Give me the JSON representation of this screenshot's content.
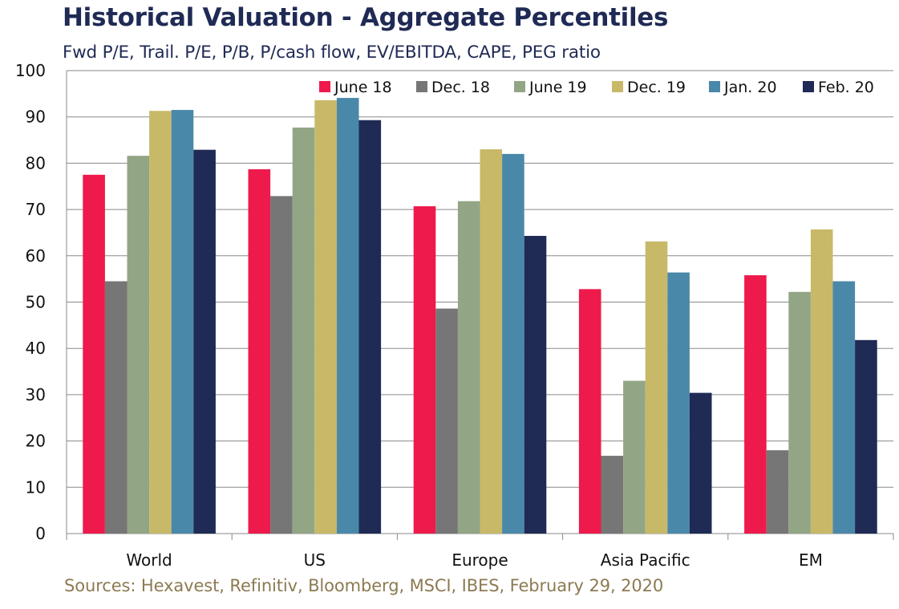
{
  "title": "Historical Valuation - Aggregate Percentiles",
  "subtitle": "Fwd P/E, Trail. P/E, P/B, P/cash flow, EV/EBITDA, CAPE, PEG ratio",
  "source": "Sources: Hexavest, Refinitiv, Bloomberg, MSCI, IBES, February 29, 2020",
  "chart_data": {
    "type": "bar",
    "title": "Historical Valuation - Aggregate Percentiles",
    "subtitle": "Fwd P/E, Trail. P/E, P/B, P/cash flow, EV/EBITDA, CAPE, PEG ratio",
    "xlabel": "",
    "ylabel": "",
    "ylim": [
      0,
      100
    ],
    "yticks": [
      0,
      10,
      20,
      30,
      40,
      50,
      60,
      70,
      80,
      90,
      100
    ],
    "grid": "horizontal",
    "legend_position": "top-right",
    "categories": [
      "World",
      "US",
      "Europe",
      "Asia Pacific",
      "EM"
    ],
    "series": [
      {
        "name": "June 18",
        "color": "#ee1a4c",
        "values": [
          77.5,
          78.7,
          70.7,
          52.8,
          55.8
        ]
      },
      {
        "name": "Dec. 18",
        "color": "#767676",
        "values": [
          54.5,
          72.9,
          48.6,
          16.8,
          18.0
        ]
      },
      {
        "name": "June 19",
        "color": "#92a686",
        "values": [
          81.6,
          87.7,
          71.8,
          33.0,
          52.2
        ]
      },
      {
        "name": "Dec. 19",
        "color": "#c8b968",
        "values": [
          91.3,
          93.6,
          83.0,
          63.1,
          65.7
        ]
      },
      {
        "name": "Jan. 20",
        "color": "#4a88aa",
        "values": [
          91.5,
          94.1,
          82.0,
          56.4,
          54.5
        ]
      },
      {
        "name": "Feb. 20",
        "color": "#1f2a55",
        "values": [
          82.9,
          89.3,
          64.3,
          30.4,
          41.8
        ]
      }
    ]
  }
}
